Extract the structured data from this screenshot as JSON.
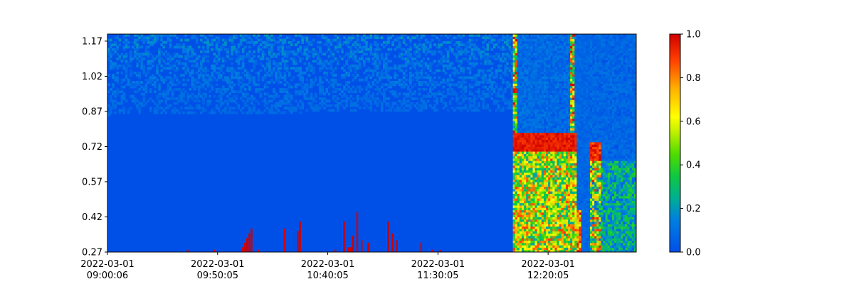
{
  "chart_data": {
    "type": "heatmap",
    "title": "",
    "xlabel": "",
    "ylabel": "",
    "x_tick_labels": [
      [
        "2022-03-01",
        "09:00:06"
      ],
      [
        "2022-03-01",
        "09:50:05"
      ],
      [
        "2022-03-01",
        "10:40:05"
      ],
      [
        "2022-03-01",
        "11:30:05"
      ],
      [
        "2022-03-01",
        "12:20:05"
      ]
    ],
    "x_range_minutes": [
      0,
      240
    ],
    "x_tick_minutes": [
      0,
      50,
      100,
      150,
      200
    ],
    "y_ticks": [
      "0.27",
      "0.42",
      "0.57",
      "0.72",
      "0.87",
      "1.02",
      "1.17"
    ],
    "y_tick_values": [
      0.27,
      0.42,
      0.57,
      0.72,
      0.87,
      1.02,
      1.17
    ],
    "ylim": [
      0.27,
      1.2
    ],
    "colorbar": {
      "ticks": [
        "0.0",
        "0.2",
        "0.4",
        "0.6",
        "0.8",
        "1.0"
      ],
      "range": [
        0,
        1
      ],
      "colormap": "jet-like (blue-green-yellow-red)"
    },
    "background_value": 0.0,
    "low_spikes": [
      {
        "x": 36,
        "top": 0.28
      },
      {
        "x": 48,
        "top": 0.28
      },
      {
        "x": 61,
        "top": 0.29
      },
      {
        "x": 62,
        "top": 0.31
      },
      {
        "x": 63,
        "top": 0.33
      },
      {
        "x": 64,
        "top": 0.35
      },
      {
        "x": 65,
        "top": 0.37
      },
      {
        "x": 68,
        "top": 0.28
      },
      {
        "x": 80,
        "top": 0.37
      },
      {
        "x": 86,
        "top": 0.36
      },
      {
        "x": 87,
        "top": 0.4
      },
      {
        "x": 103,
        "top": 0.28
      },
      {
        "x": 107,
        "top": 0.4
      },
      {
        "x": 109,
        "top": 0.29
      },
      {
        "x": 110,
        "top": 0.29
      },
      {
        "x": 111,
        "top": 0.34
      },
      {
        "x": 113,
        "top": 0.44
      },
      {
        "x": 115,
        "top": 0.32
      },
      {
        "x": 118,
        "top": 0.31
      },
      {
        "x": 127,
        "top": 0.4
      },
      {
        "x": 129,
        "top": 0.35
      },
      {
        "x": 131,
        "top": 0.32
      },
      {
        "x": 142,
        "top": 0.31
      },
      {
        "x": 147,
        "top": 0.28
      },
      {
        "x": 151,
        "top": 0.28
      }
    ]
  }
}
